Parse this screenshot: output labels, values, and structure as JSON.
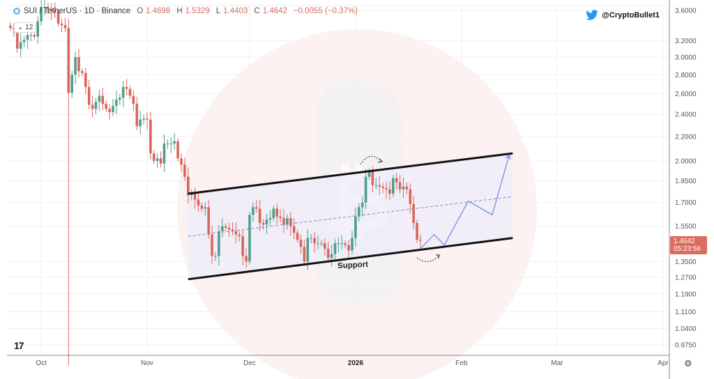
{
  "header": {
    "symbol": "SUI / TetherUS · 1D · Binance",
    "open_label": "O",
    "open": "1.4698",
    "high_label": "H",
    "high": "1.5329",
    "low_label": "L",
    "low": "1.4403",
    "close_label": "C",
    "close": "1.4642",
    "change": "−0.0055 (−0.37%)",
    "indicator_count": "12"
  },
  "twitter_handle": "@CryptoBullet1",
  "price_tag": {
    "price": "1.4642",
    "countdown": "05:23:56"
  },
  "annotation_label": "Support",
  "colors": {
    "up": "#4f9e8c",
    "down": "#d9665a",
    "projection": "#6f86e0",
    "midline": "#8c7fd6",
    "watermark": "#fbeeec"
  },
  "icons": {
    "symbol": "sui-logo-icon",
    "twitter": "twitter-bird-icon",
    "settings": "gear-icon",
    "logo": "tradingview-logo-icon",
    "watermark": "bitcoin-icon"
  },
  "chart_data": {
    "type": "candlestick",
    "interval": "1D",
    "y_scale": "log",
    "ylim": [
      0.975,
      3.6
    ],
    "y_ticks": [
      "3.6000",
      "3.2000",
      "3.0000",
      "2.8000",
      "2.6000",
      "2.4000",
      "2.2000",
      "2.0000",
      "1.8500",
      "1.7000",
      "1.5500",
      "1.3500",
      "1.2700",
      "1.1900",
      "1.1100",
      "1.0400",
      "0.9750"
    ],
    "x_ticks": [
      {
        "label": "Oct",
        "date": "2025-10-01"
      },
      {
        "label": "Nov",
        "date": "2025-11-01"
      },
      {
        "label": "Dec",
        "date": "2025-12-01"
      },
      {
        "label": "2026",
        "date": "2026-01-01",
        "bold": true
      },
      {
        "label": "Feb",
        "date": "2026-02-01"
      },
      {
        "label": "Mar",
        "date": "2026-03-01"
      },
      {
        "label": "Apr",
        "date": "2026-04-01"
      }
    ],
    "closes": [
      3.36,
      3.34,
      3.1,
      3.18,
      3.21,
      3.27,
      3.27,
      3.25,
      3.45,
      3.65,
      3.65,
      3.62,
      3.6,
      3.58,
      3.42,
      3.4,
      3.36,
      2.61,
      2.8,
      3.0,
      2.84,
      2.82,
      2.67,
      2.49,
      2.45,
      2.52,
      2.58,
      2.5,
      2.45,
      2.42,
      2.48,
      2.54,
      2.56,
      2.67,
      2.65,
      2.58,
      2.5,
      2.29,
      2.35,
      2.36,
      2.35,
      2.06,
      2.0,
      2.02,
      1.98,
      2.14,
      2.14,
      2.14,
      2.16,
      2.02,
      1.97,
      1.88,
      1.75,
      1.76,
      1.72,
      1.68,
      1.66,
      1.67,
      1.5,
      1.38,
      1.38,
      1.52,
      1.55,
      1.54,
      1.53,
      1.52,
      1.5,
      1.49,
      1.38,
      1.35,
      1.62,
      1.67,
      1.66,
      1.57,
      1.56,
      1.59,
      1.6,
      1.66,
      1.61,
      1.6,
      1.56,
      1.6,
      1.55,
      1.51,
      1.47,
      1.43,
      1.35,
      1.48,
      1.48,
      1.45,
      1.45,
      1.45,
      1.42,
      1.37,
      1.39,
      1.45,
      1.45,
      1.45,
      1.44,
      1.41,
      1.48,
      1.61,
      1.67,
      1.7,
      1.88,
      1.92,
      1.82,
      1.82,
      1.81,
      1.8,
      1.79,
      1.76,
      1.87,
      1.84,
      1.79,
      1.81,
      1.79,
      1.69,
      1.57,
      1.47,
      1.4642
    ],
    "wick_overrides": [
      {
        "index": 17,
        "low": 0.9
      }
    ],
    "channel": {
      "upper": [
        {
          "date": "2025-11-13",
          "price": 1.76
        },
        {
          "date": "2026-02-16",
          "price": 2.06
        }
      ],
      "middle": [
        {
          "date": "2025-11-13",
          "price": 1.49
        },
        {
          "date": "2026-02-16",
          "price": 1.74
        }
      ],
      "lower": [
        {
          "date": "2025-11-13",
          "price": 1.26
        },
        {
          "date": "2026-02-16",
          "price": 1.48
        }
      ]
    },
    "projection": [
      {
        "date": "2026-01-20",
        "price": 1.42
      },
      {
        "date": "2026-01-24",
        "price": 1.5
      },
      {
        "date": "2026-01-27",
        "price": 1.44
      },
      {
        "date": "2026-02-03",
        "price": 1.71
      },
      {
        "date": "2026-02-10",
        "price": 1.62
      },
      {
        "date": "2026-02-15",
        "price": 2.05
      }
    ]
  }
}
